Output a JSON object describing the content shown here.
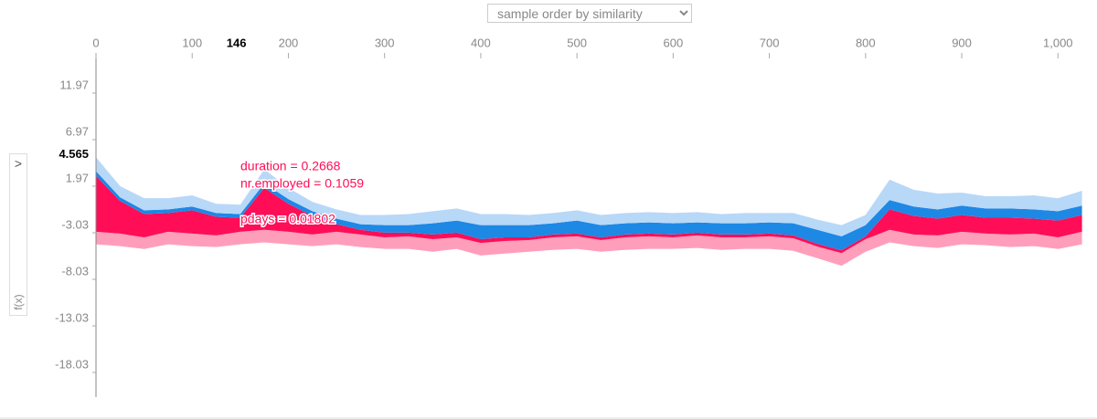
{
  "chart_data": {
    "type": "stacked-area",
    "sort_label": "sample order by similarity",
    "y_label": "f(x)",
    "side_button": ">",
    "highlight_x": 146,
    "highlight_y": 4.565,
    "annotations": [
      "duration = 0.2668",
      "nr.employed = 0.1059",
      "pdays = 0.01802"
    ],
    "xlim": [
      0,
      1033
    ],
    "xticks": [
      0,
      100,
      200,
      300,
      400,
      500,
      600,
      700,
      800,
      900,
      {
        "value": 1000,
        "label": "1,000"
      }
    ],
    "ylim": [
      -21.46,
      15.3
    ],
    "yticks": [
      11.97,
      6.97,
      1.97,
      -3.03,
      -8.03,
      -13.03,
      -18.03
    ],
    "x": [
      0,
      25,
      50,
      75,
      100,
      125,
      150,
      175,
      200,
      225,
      250,
      275,
      300,
      325,
      350,
      375,
      400,
      425,
      450,
      475,
      500,
      525,
      550,
      575,
      600,
      625,
      650,
      675,
      700,
      725,
      750,
      775,
      800,
      825,
      850,
      875,
      900,
      925,
      950,
      975,
      1000,
      1025
    ],
    "floor": [
      -5,
      -5.2,
      -5.5,
      -5,
      -5.2,
      -5.3,
      -5,
      -4.8,
      -5,
      -5.2,
      -5,
      -5.3,
      -5.5,
      -5.5,
      -5.8,
      -5.5,
      -6.2,
      -6,
      -5.8,
      -5.6,
      -5.5,
      -5.8,
      -5.6,
      -5.5,
      -5.5,
      -5.4,
      -5.6,
      -5.5,
      -5.5,
      -5.7,
      -6.5,
      -7.3,
      -5.8,
      -4.8,
      -5.2,
      -5.4,
      -5,
      -5.1,
      -5.3,
      -5.2,
      -5.5,
      -5
    ],
    "floor_color": "#ff9ebb",
    "series": [
      {
        "color": "#ff9ebb",
        "values": [
          1.3,
          1.3,
          1.2,
          1.3,
          1.3,
          1.2,
          1.3,
          1.3,
          1.3,
          1.2,
          1.3,
          1.3,
          1.2,
          1.3,
          1.3,
          1.2,
          1.3,
          1.3,
          1.2,
          1.3,
          1.3,
          1.2,
          1.3,
          1.3,
          1.2,
          1.3,
          1.3,
          1.2,
          1.3,
          1.3,
          1.2,
          1.3,
          1.3,
          1.3,
          1.2,
          1.3,
          1.3,
          1.2,
          1.3,
          1.3,
          1.2,
          1.3
        ]
      },
      {
        "color": "#ff0d57",
        "values": [
          6,
          3.5,
          2.5,
          2,
          2.5,
          2,
          1.5,
          4.5,
          3,
          2,
          0.8,
          0.5,
          0.5,
          0.4,
          0.5,
          0.5,
          0.4,
          0.4,
          0.3,
          0.3,
          0.3,
          0.3,
          0.3,
          0.3,
          0.3,
          0.3,
          0.3,
          0.3,
          0.3,
          0.3,
          0.3,
          0.3,
          0.3,
          2.2,
          2,
          1.8,
          1.8,
          1.7,
          1.8,
          1.6,
          1.8,
          1.8
        ]
      },
      {
        "color": "#1e88e5",
        "values": [
          0.5,
          0.4,
          0.4,
          0.4,
          0.4,
          0.4,
          0.4,
          0.5,
          0.5,
          0.5,
          0.6,
          0.6,
          0.8,
          0.8,
          1.2,
          1.3,
          1.5,
          1.3,
          1.3,
          1.2,
          1.4,
          1.3,
          1.2,
          1.2,
          1.2,
          1.1,
          1.2,
          1.2,
          1.2,
          1.3,
          1.5,
          1.5,
          1.2,
          1,
          1,
          1,
          1,
          1,
          1,
          1,
          1,
          1
        ]
      },
      {
        "color": "#b8d8f8",
        "values": [
          1.5,
          1.2,
          1.3,
          1.2,
          1.2,
          1,
          1,
          1.5,
          1.2,
          1,
          1,
          1,
          1.1,
          1.2,
          1.3,
          1.3,
          1.2,
          1.2,
          1.1,
          1.1,
          1.1,
          1.1,
          1.1,
          1.1,
          1.1,
          1.1,
          1,
          1.1,
          1,
          1.1,
          1.1,
          1.2,
          1.1,
          2.2,
          1.8,
          1.7,
          1.4,
          1.3,
          1.3,
          1.5,
          1.4,
          1.6
        ]
      }
    ]
  }
}
